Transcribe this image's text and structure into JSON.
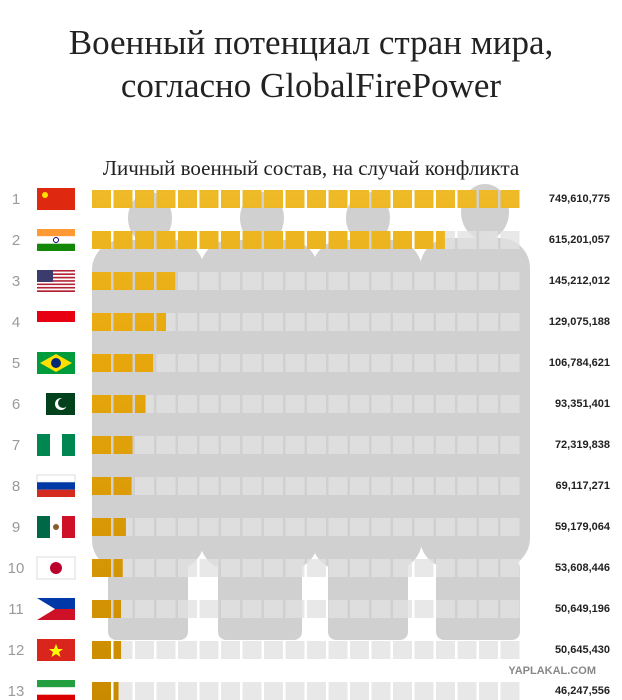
{
  "chart_data": {
    "type": "bar",
    "title": [
      "Военный потенциал стран мира,",
      "согласно GlobalFirePower"
    ],
    "subtitle": "Личный военный состав, на случай конфликта",
    "categories": [
      "1",
      "2",
      "3",
      "4",
      "5",
      "6",
      "7",
      "8",
      "9",
      "10",
      "11",
      "12",
      "13"
    ],
    "values": [
      749610775,
      615201057,
      145212012,
      129075188,
      106784621,
      93351401,
      72319838,
      69117271,
      59179064,
      53608446,
      50649196,
      50645430,
      46247556
    ],
    "value_labels": [
      "749,610,775",
      "615,201,057",
      "145,212,012",
      "129,075,188",
      "106,784,621",
      "93,351,401",
      "72,319,838",
      "69,117,271",
      "59,179,064",
      "53,608,446",
      "50,649,196",
      "50,645,430",
      "46,247,556"
    ],
    "color": "#e8a80c",
    "watermark": "YAPLAKAL.COM"
  }
}
